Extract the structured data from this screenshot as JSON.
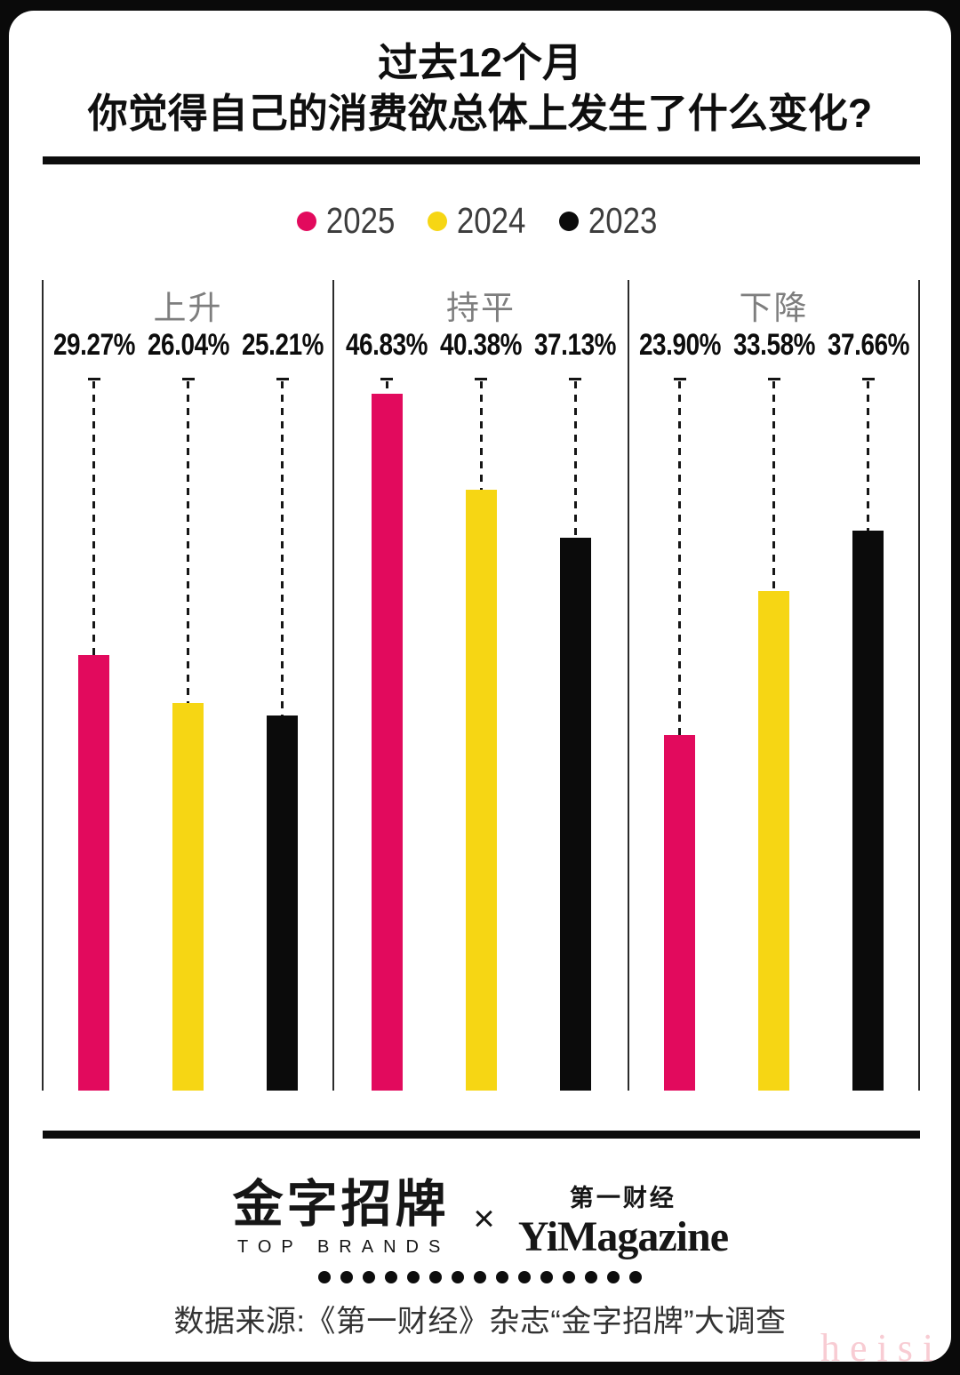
{
  "title": {
    "line1": "过去12个月",
    "line2": "你觉得自己的消费欲总体上发生了什么变化?"
  },
  "legend": {
    "items": [
      {
        "label": "2025",
        "color": "#e20a5d"
      },
      {
        "label": "2024",
        "color": "#f6d614"
      },
      {
        "label": "2023",
        "color": "#0b0b0b"
      }
    ]
  },
  "chart_data": {
    "type": "bar",
    "title": "过去12个月 你觉得自己的消费欲总体上发生了什么变化?",
    "categories": [
      "上升",
      "持平",
      "下降"
    ],
    "series": [
      {
        "name": "2025",
        "color": "#e20a5d",
        "values": [
          29.27,
          46.83,
          23.9
        ],
        "labels": [
          "29.27%",
          "46.83%",
          "23.90%"
        ]
      },
      {
        "name": "2024",
        "color": "#f6d614",
        "values": [
          26.04,
          40.38,
          33.58
        ],
        "labels": [
          "26.04%",
          "40.38%",
          "33.58%"
        ]
      },
      {
        "name": "2023",
        "color": "#0b0b0b",
        "values": [
          25.21,
          37.13,
          37.66
        ],
        "labels": [
          "25.21%",
          "37.13%",
          "37.66%"
        ]
      }
    ],
    "xlabel": "",
    "ylabel": "",
    "ylim": [
      0,
      54.5
    ],
    "grid": false,
    "legend_position": "top",
    "annotations": "每根柱子顶端通过虚线引导线连接到上方的数值标签"
  },
  "footer": {
    "brand_left_cn": "金字招牌",
    "brand_left_en": "TOP BRANDS",
    "cross": "×",
    "brand_right_top": "第一财经",
    "brand_right_main": "YiMagazine",
    "dots_count": 15,
    "source": "数据来源:《第一财经》杂志“金字招牌”大调查"
  },
  "watermark": "heisi",
  "colors": {
    "accent_pink": "#e20a5d",
    "accent_yellow": "#f6d614",
    "bar_black": "#0b0b0b",
    "frame_black": "#0a0a0a",
    "card_white": "#ffffff",
    "muted_gray": "#7e7e7e",
    "watermark_pink": "#f8ccd3"
  }
}
